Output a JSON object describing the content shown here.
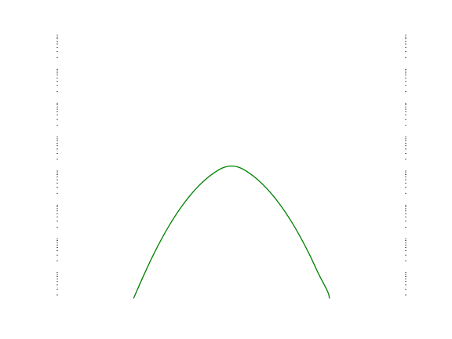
{
  "chart_data": {
    "type": "line",
    "title": "",
    "xlabel": "",
    "ylabel": "",
    "xlim": [
      -1,
      1
    ],
    "ylim": [
      0.001,
      100000
    ],
    "yscale": "log",
    "grid": false,
    "legend": "none",
    "tick_labels_visible": false,
    "minor_ticks_left_and_right": true,
    "series": [
      {
        "color": "#008000",
        "x": [
          -0.56,
          -0.5,
          -0.45,
          -0.4,
          -0.35,
          -0.3,
          -0.25,
          -0.2,
          -0.15,
          -0.1,
          -0.05,
          0.0,
          0.05,
          0.1,
          0.15,
          0.2,
          0.25,
          0.3,
          0.35,
          0.4,
          0.45,
          0.5,
          0.55,
          0.56
        ],
        "y": [
          0.00158,
          0.00794,
          0.0282,
          0.0891,
          0.251,
          0.631,
          1.41,
          2.82,
          5.01,
          7.94,
          11.2,
          12.6,
          11.2,
          7.94,
          5.01,
          2.82,
          1.41,
          0.631,
          0.251,
          0.0891,
          0.0282,
          0.00794,
          0.00251,
          0.00158
        ]
      }
    ]
  }
}
